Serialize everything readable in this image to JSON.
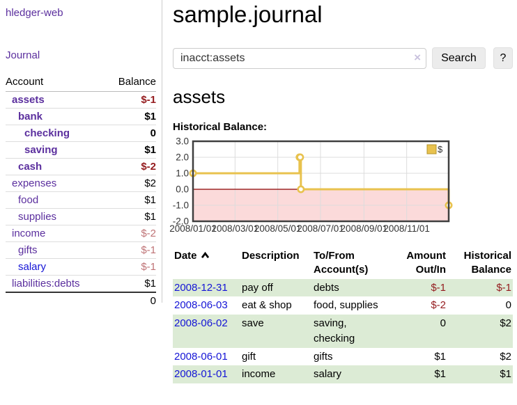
{
  "sidebar": {
    "brand": "hledger-web",
    "journal_link": "Journal",
    "accounts_table": {
      "headers": [
        "Account",
        "Balance"
      ],
      "rows": [
        {
          "account": "assets",
          "indent": 1,
          "bold": true,
          "link_color": "purple",
          "balance": "$-1",
          "balance_style": "neg-strong"
        },
        {
          "account": "bank",
          "indent": 2,
          "bold": true,
          "link_color": "purple",
          "balance": "$1",
          "balance_style": "pos-strong"
        },
        {
          "account": "checking",
          "indent": 3,
          "bold": true,
          "link_color": "purple",
          "balance": "0",
          "balance_style": "pos-strong"
        },
        {
          "account": "saving",
          "indent": 3,
          "bold": true,
          "link_color": "purple",
          "balance": "$1",
          "balance_style": "pos-strong"
        },
        {
          "account": "cash",
          "indent": 2,
          "bold": true,
          "link_color": "purple",
          "balance": "$-2",
          "balance_style": "neg-strong"
        },
        {
          "account": "expenses",
          "indent": 1,
          "bold": false,
          "link_color": "purple",
          "balance": "$2",
          "balance_style": "pos"
        },
        {
          "account": "food",
          "indent": 2,
          "bold": false,
          "link_color": "purple",
          "balance": "$1",
          "balance_style": "pos"
        },
        {
          "account": "supplies",
          "indent": 2,
          "bold": false,
          "link_color": "purple",
          "balance": "$1",
          "balance_style": "pos"
        },
        {
          "account": "income",
          "indent": 1,
          "bold": false,
          "link_color": "purple",
          "balance": "$-2",
          "balance_style": "neg-soft"
        },
        {
          "account": "gifts",
          "indent": 2,
          "bold": false,
          "link_color": "purple",
          "balance": "$-1",
          "balance_style": "neg-soft"
        },
        {
          "account": "salary",
          "indent": 2,
          "bold": false,
          "link_color": "blue",
          "balance": "$-1",
          "balance_style": "neg-soft"
        },
        {
          "account": "liabilities:debts",
          "indent": 1,
          "bold": false,
          "link_color": "purple",
          "balance": "$1",
          "balance_style": "pos"
        }
      ],
      "total": "0"
    }
  },
  "main": {
    "title": "sample.journal",
    "search": {
      "value": "inacct:assets",
      "clear_icon": "×",
      "button": "Search",
      "help_button": "?"
    },
    "account_heading": "assets",
    "chart_label": "Historical Balance:"
  },
  "chart_data": {
    "type": "line",
    "step": true,
    "title": "Historical Balance:",
    "series": [
      {
        "name": "$",
        "points": [
          [
            "2008-01-01",
            1
          ],
          [
            "2008-06-01",
            2
          ],
          [
            "2008-06-02",
            2
          ],
          [
            "2008-06-03",
            0
          ],
          [
            "2008-12-31",
            -1
          ]
        ]
      }
    ],
    "x_range": [
      "2008-01-01",
      "2008-12-31"
    ],
    "ylim": [
      -2,
      3
    ],
    "y_ticks": [
      "3.0",
      "2.0",
      "1.0",
      "0.0",
      "-1.0",
      "-2.0"
    ],
    "x_ticks": [
      "2008/01/01",
      "2008/03/01",
      "2008/05/01",
      "2008/07/01",
      "2008/09/01",
      "2008/11/01"
    ],
    "legend_position": "top-right",
    "grid": true,
    "colors": {
      "line": "#e8c24e",
      "marker_fill": "#ffffff",
      "negative_fill": "#fbdada",
      "zero_line": "#8b0000",
      "grid": "#dcdcdc",
      "border": "#3f3f3f",
      "legend_swatch": "#e8c24e",
      "legend_swatch_border": "#b5942c",
      "tick_label": "#333333"
    }
  },
  "register_table": {
    "headers": [
      "Date",
      "Description",
      "To/From Account(s)",
      "Amount Out/In",
      "Historical Balance"
    ],
    "rows": [
      {
        "date": "2008-12-31",
        "description": "pay off",
        "accounts": "debts",
        "amount": "$-1",
        "amount_neg": true,
        "balance": "$-1",
        "balance_neg": true
      },
      {
        "date": "2008-06-03",
        "description": "eat & shop",
        "accounts": "food, supplies",
        "amount": "$-2",
        "amount_neg": true,
        "balance": "0",
        "balance_neg": false
      },
      {
        "date": "2008-06-02",
        "description": "save",
        "accounts": "saving, checking",
        "amount": "0",
        "amount_neg": false,
        "balance": "$2",
        "balance_neg": false
      },
      {
        "date": "2008-06-01",
        "description": "gift",
        "accounts": "gifts",
        "amount": "$1",
        "amount_neg": false,
        "balance": "$2",
        "balance_neg": false
      },
      {
        "date": "2008-01-01",
        "description": "income",
        "accounts": "salary",
        "amount": "$1",
        "amount_neg": false,
        "balance": "$1",
        "balance_neg": false
      }
    ]
  }
}
